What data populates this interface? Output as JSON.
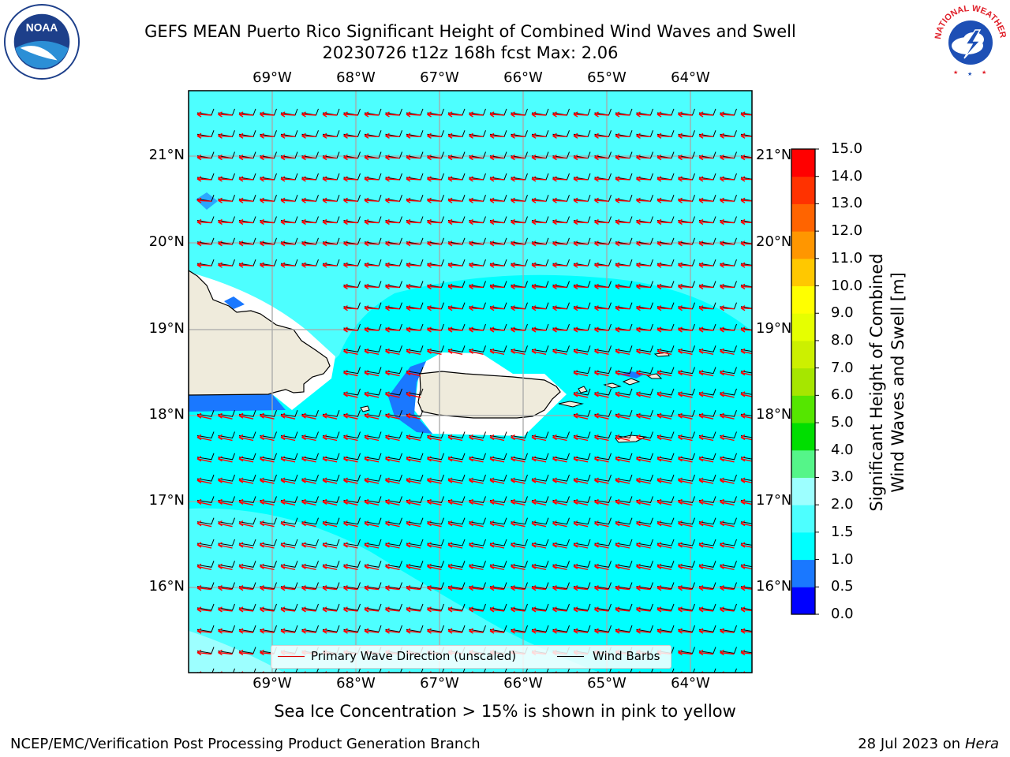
{
  "title": {
    "line1": "GEFS MEAN Puerto Rico Significant Height of Combined Wind Waves and Swell",
    "line2": "20230726 t12z 168h fcst   Max: 2.06"
  },
  "map": {
    "lon_labels": [
      "69°W",
      "68°W",
      "67°W",
      "66°W",
      "65°W",
      "64°W"
    ],
    "lat_labels": [
      "21°N",
      "20°N",
      "19°N",
      "18°N",
      "17°N",
      "16°N"
    ],
    "land_color": "#efebdc",
    "ocean_color": "#00ffff",
    "contour_colors": {
      "0.5-1.0": "#1a78ff",
      "1.0-1.5": "#00ffff",
      "1.5-2.0": "#4dffff",
      "2.0-2.5": "#9dffff"
    },
    "wave_arrow_color": "#ff0000",
    "barb_color": "#000000"
  },
  "colorbar": {
    "title_line1": "Significant Height of Combined",
    "title_line2": "Wind Waves and Swell [m]",
    "ticks": [
      "0.0",
      "0.5",
      "1.0",
      "1.5",
      "2.0",
      "3.0",
      "4.0",
      "5.0",
      "6.0",
      "7.0",
      "8.0",
      "9.0",
      "10.0",
      "11.0",
      "12.0",
      "13.0",
      "14.0",
      "15.0"
    ],
    "colors": [
      "#0000ff",
      "#1a78ff",
      "#00ffff",
      "#4dffff",
      "#9dffff",
      "#55f589",
      "#00de00",
      "#55e600",
      "#a6e600",
      "#ccf000",
      "#e6ff00",
      "#ffff00",
      "#ffc800",
      "#ff9600",
      "#ff6400",
      "#ff3200",
      "#ff0000"
    ]
  },
  "legend": {
    "wave_label": "Primary Wave Direction (unscaled)",
    "barb_label": "Wind Barbs"
  },
  "sea_ice_note": "Sea Ice Concentration > 15% is shown in pink to yellow",
  "footer": {
    "left": "NCEP/EMC/Verification Post Processing Product Generation Branch",
    "date": "28 Jul 2023 on",
    "machine": "Hera"
  },
  "logos": {
    "noaa": "NOAA",
    "nws": "NATIONAL WEATHER SERVICE"
  }
}
